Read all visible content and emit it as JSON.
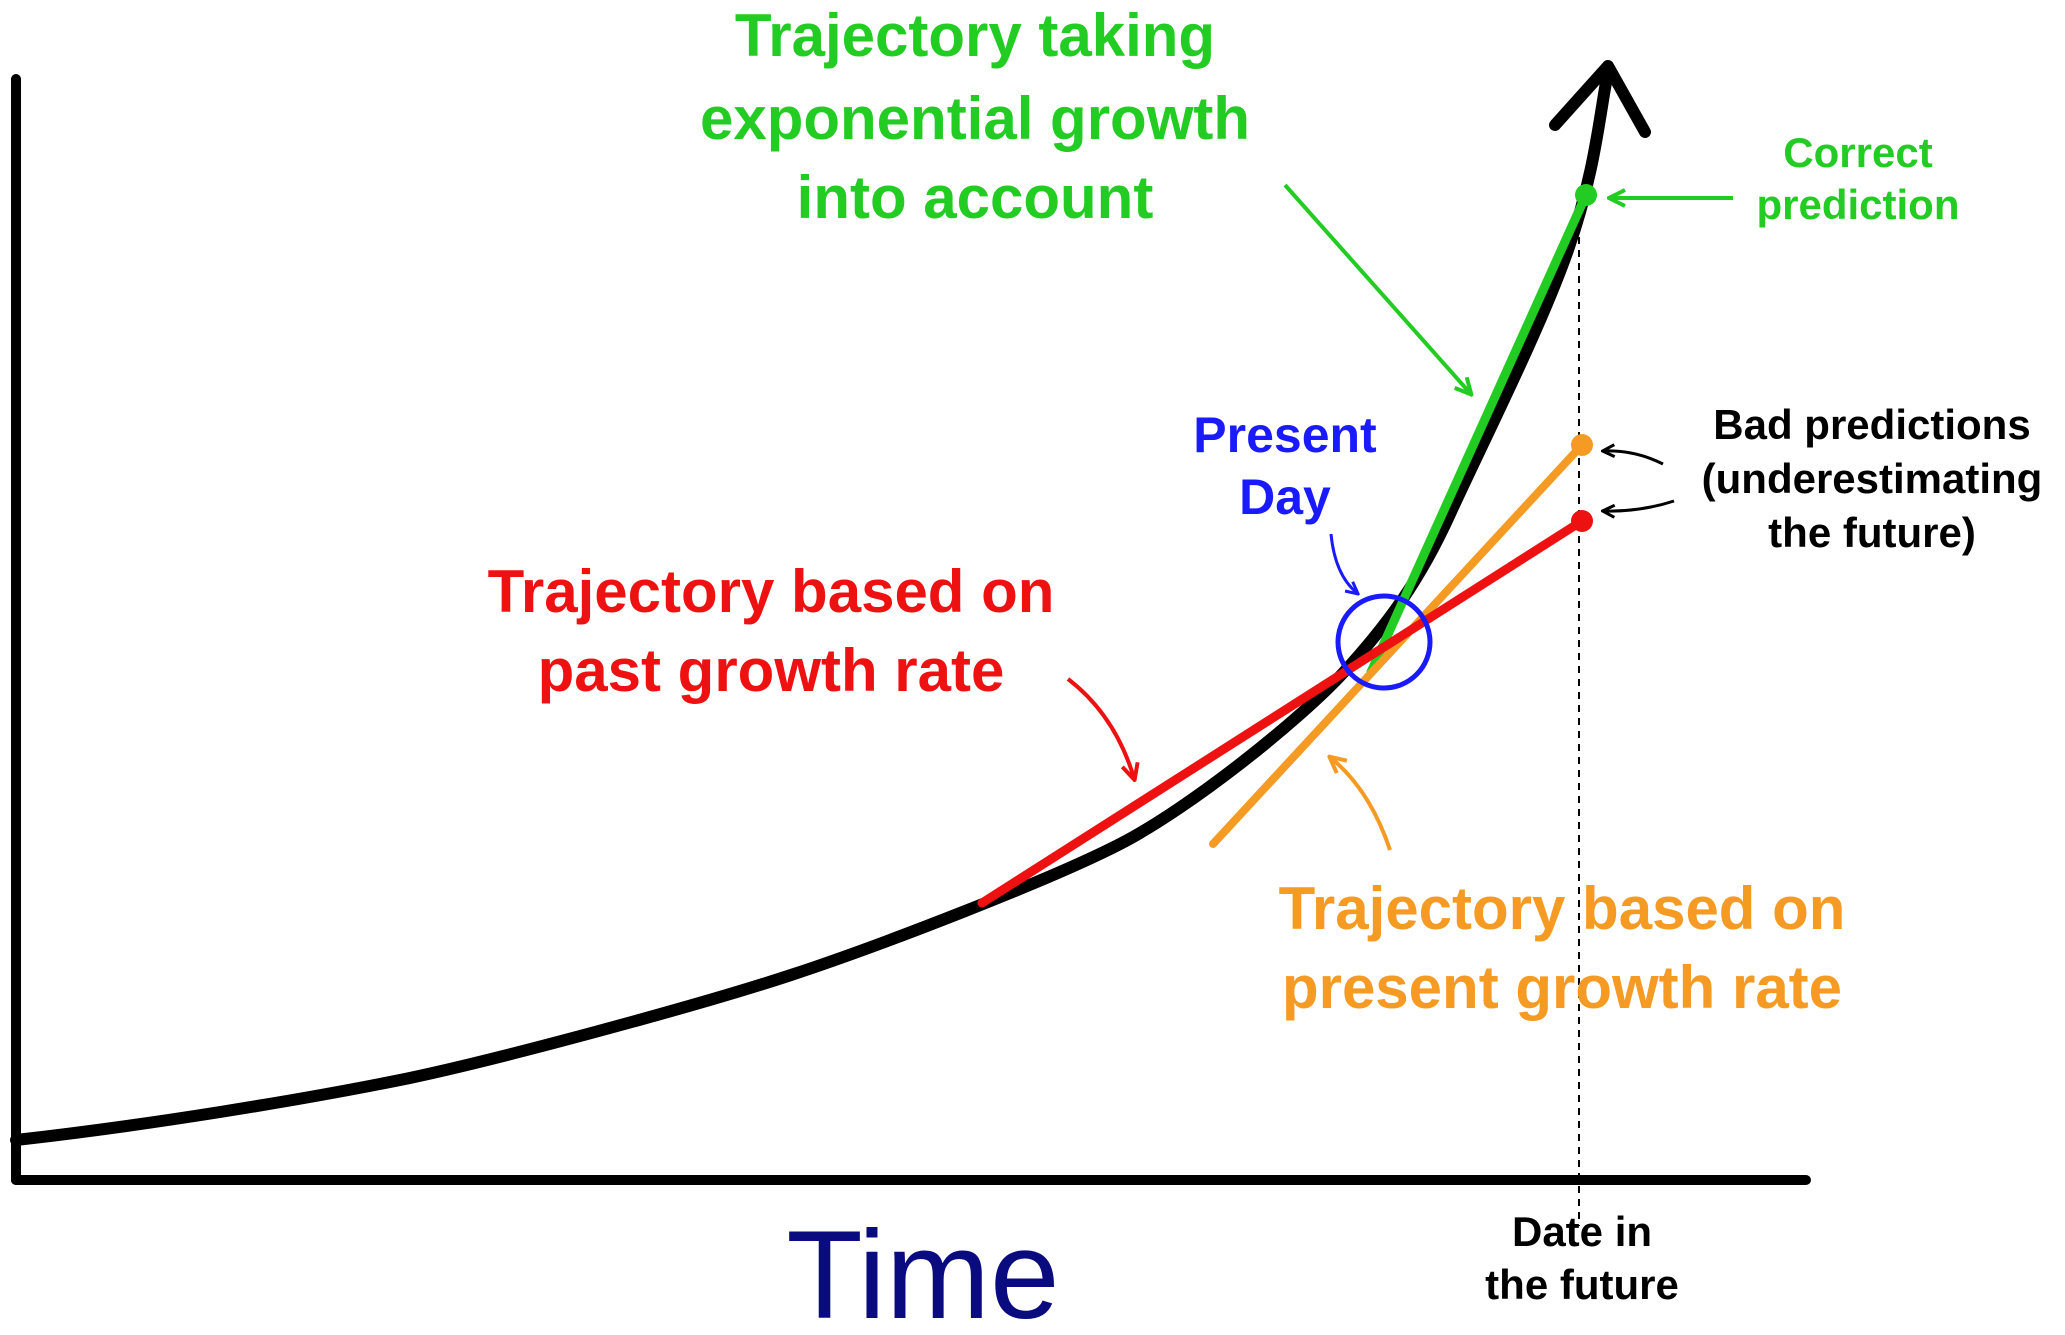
{
  "labels": {
    "exponential": {
      "lines": [
        "Trajectory taking",
        "exponential growth",
        "into account"
      ]
    },
    "correct": {
      "lines": [
        "Correct",
        "prediction"
      ]
    },
    "present_day": {
      "lines": [
        "Present",
        "Day"
      ]
    },
    "bad": {
      "lines": [
        "Bad predictions",
        "(underestimating",
        "the future)"
      ]
    },
    "past_rate": {
      "lines": [
        "Trajectory based on",
        "past growth rate"
      ]
    },
    "present_rate": {
      "lines": [
        "Trajectory based on",
        "present growth rate"
      ]
    },
    "x_axis": "Time",
    "future_date": {
      "lines": [
        "Date in",
        "the future"
      ]
    }
  }
}
